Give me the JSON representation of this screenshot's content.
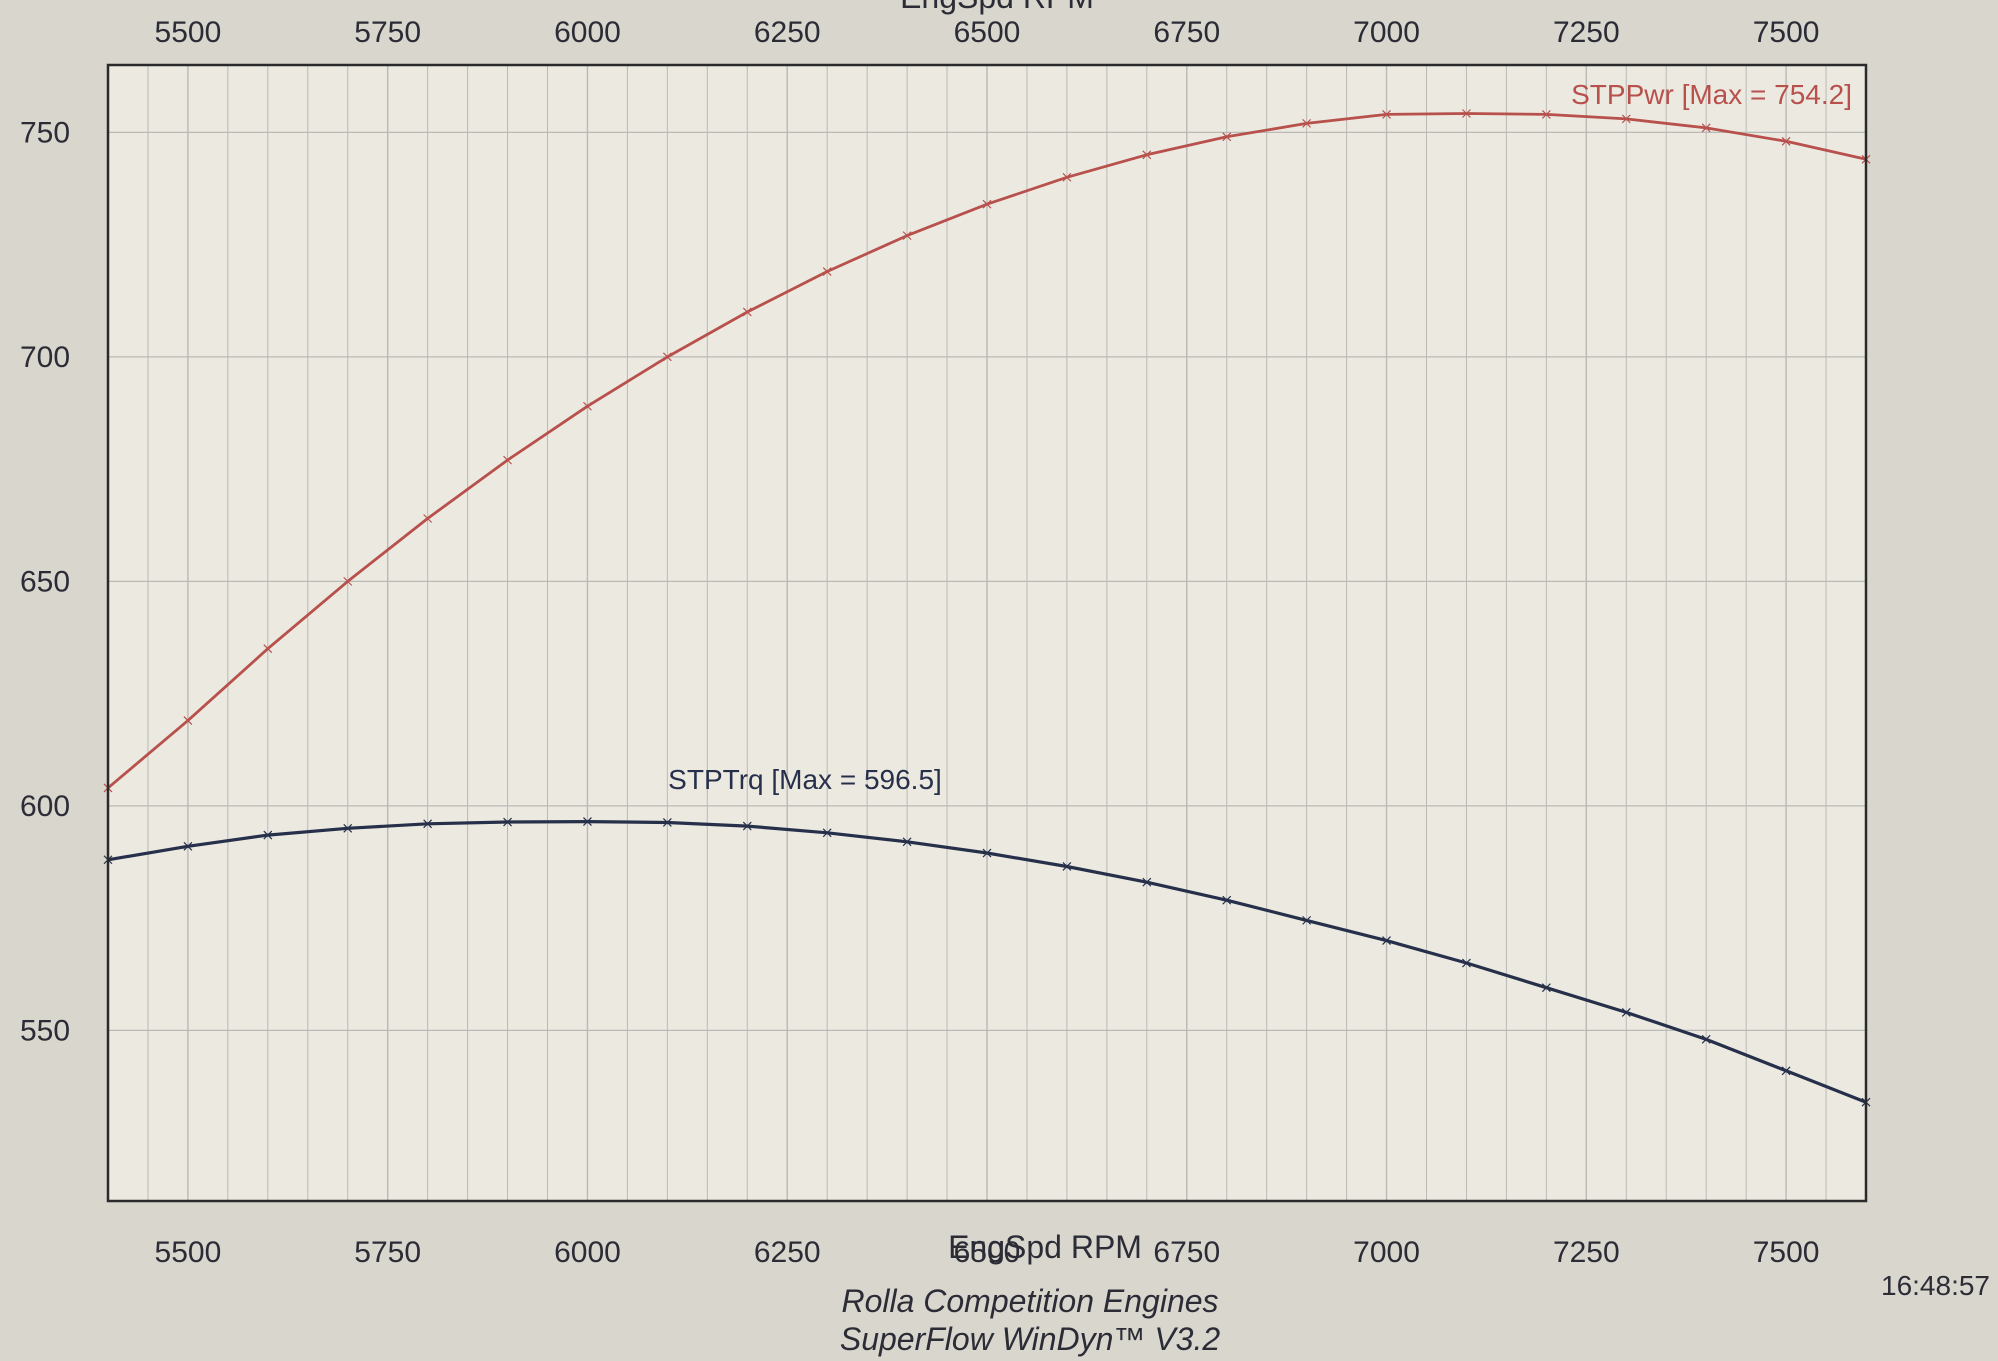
{
  "chart_data": {
    "type": "line",
    "xlabel": "EngSpd RPM",
    "x_ticks": [
      5500,
      5750,
      6000,
      6250,
      6500,
      6750,
      7000,
      7250,
      7500
    ],
    "y_ticks": [
      550,
      600,
      650,
      700,
      750
    ],
    "xlim": [
      5400,
      7600
    ],
    "ylim": [
      512,
      765
    ],
    "grid": true,
    "colors": {
      "power": "#b8504c",
      "torque": "#27304a",
      "grid": "#b9b9b6",
      "frame": "#2a2a2a"
    },
    "series": [
      {
        "name": "STPPwr",
        "label": "STPPwr [Max = 754.2]",
        "x": [
          5400,
          5500,
          5600,
          5700,
          5800,
          5900,
          6000,
          6100,
          6200,
          6300,
          6400,
          6500,
          6600,
          6700,
          6800,
          6900,
          7000,
          7100,
          7200,
          7300,
          7400,
          7500,
          7600
        ],
        "y": [
          604,
          619,
          635,
          650,
          664,
          677,
          689,
          700,
          710,
          719,
          727,
          734,
          740,
          745,
          749,
          752,
          754,
          754.2,
          754,
          753,
          751,
          748,
          744
        ]
      },
      {
        "name": "STPTrq",
        "label": "STPTrq [Max = 596.5]",
        "x": [
          5400,
          5500,
          5600,
          5700,
          5800,
          5900,
          6000,
          6100,
          6200,
          6300,
          6400,
          6500,
          6600,
          6700,
          6800,
          6900,
          7000,
          7100,
          7200,
          7300,
          7400,
          7500,
          7600
        ],
        "y": [
          588,
          591,
          593.5,
          595,
          596,
          596.4,
          596.5,
          596.3,
          595.5,
          594,
          592,
          589.5,
          586.5,
          583,
          579,
          574.5,
          570,
          565,
          559.5,
          554,
          548,
          541,
          534
        ]
      }
    ]
  },
  "footer": {
    "line1": "Rolla Competition Engines",
    "line2": "SuperFlow WinDyn™ V3.2",
    "time": "16:48:57"
  }
}
